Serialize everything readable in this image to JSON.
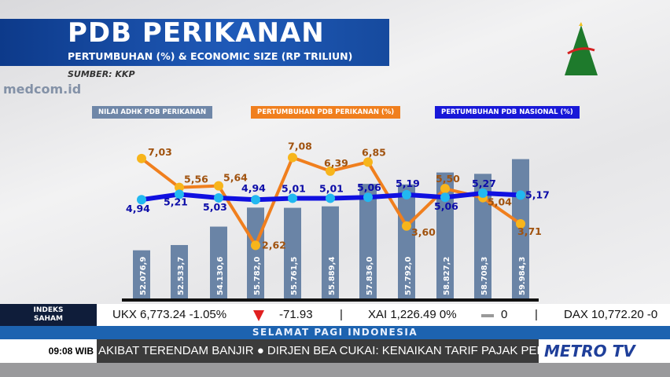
{
  "header": {
    "title": "PDB PERIKANAN",
    "subtitle": "PERTUMBUHAN (%) & ECONOMIC SIZE (RP TRILIUN)",
    "source": "SUMBER: KKP",
    "watermark": "medcom.id"
  },
  "chart_data": {
    "type": "bar+line",
    "title": "PDB PERIKANAN",
    "subtitle": "PERTUMBUHAN (%) & ECONOMIC SIZE (RP TRILIUN)",
    "legend_placement": "top",
    "series": [
      {
        "name": "NILAI ADHK PDB PERIKANAN",
        "type": "bar",
        "color": "#6a84a6",
        "labels": [
          "52.076,9",
          "52.533,7",
          "54.130,6",
          "55.782,0",
          "55.761,5",
          "55.889,4",
          "57.836,0",
          "57.792,0",
          "58.827,2",
          "58.708,3",
          "59.984,3"
        ],
        "values": [
          52076.9,
          52533.7,
          54130.6,
          55782.0,
          55761.5,
          55889.4,
          57836.0,
          57792.0,
          58827.2,
          58708.3,
          59984.3
        ]
      },
      {
        "name": "PERTUMBUHAN PDB PERIKANAN (%)",
        "type": "line",
        "color": "#f07f1e",
        "point_color": "#f7b51c",
        "labels": [
          "7,03",
          "5,56",
          "5,64",
          "2,62",
          "7,08",
          "6,39",
          "6,85",
          "3,60",
          "5,50",
          "5,04",
          "3,71"
        ],
        "values": [
          7.03,
          5.56,
          5.64,
          2.62,
          7.08,
          6.39,
          6.85,
          3.6,
          5.5,
          5.04,
          3.71
        ]
      },
      {
        "name": "PERTUMBUHAN PDB NASIONAL (%)",
        "type": "line",
        "color": "#1010e0",
        "point_color": "#22b8f0",
        "labels": [
          "4,94",
          "5,21",
          "5,03",
          "4,94",
          "5,01",
          "5,01",
          "5,06",
          "5,19",
          "5,06",
          "5,27",
          "5,17"
        ],
        "values": [
          4.94,
          5.21,
          5.03,
          4.94,
          5.01,
          5.01,
          5.06,
          5.19,
          5.06,
          5.27,
          5.17
        ]
      }
    ],
    "bar_ylim": [
      47900,
      62000
    ],
    "line_ylim": [
      0,
      8.1
    ],
    "grid": false
  },
  "ticker": {
    "index_label_1": "INDEKS",
    "index_label_2": "SAHAM",
    "stocks": [
      {
        "text": "UKX  6,773.24   -1.05%",
        "change": "-71.93",
        "direction": "down"
      },
      {
        "text": "XAI  1,226.49   0%",
        "change": "0",
        "direction": "flat"
      },
      {
        "text": "DAX  10,772.20   -0"
      }
    ]
  },
  "program": "SELAMAT PAGI INDONESIA",
  "time": "09:08 WIB",
  "news": "AKIBAT TERENDAM BANJIR  ●  DIRJEN BEA CUKAI: KENAIKAN TARIF PAJAK PEN",
  "channel": "METRO TV"
}
